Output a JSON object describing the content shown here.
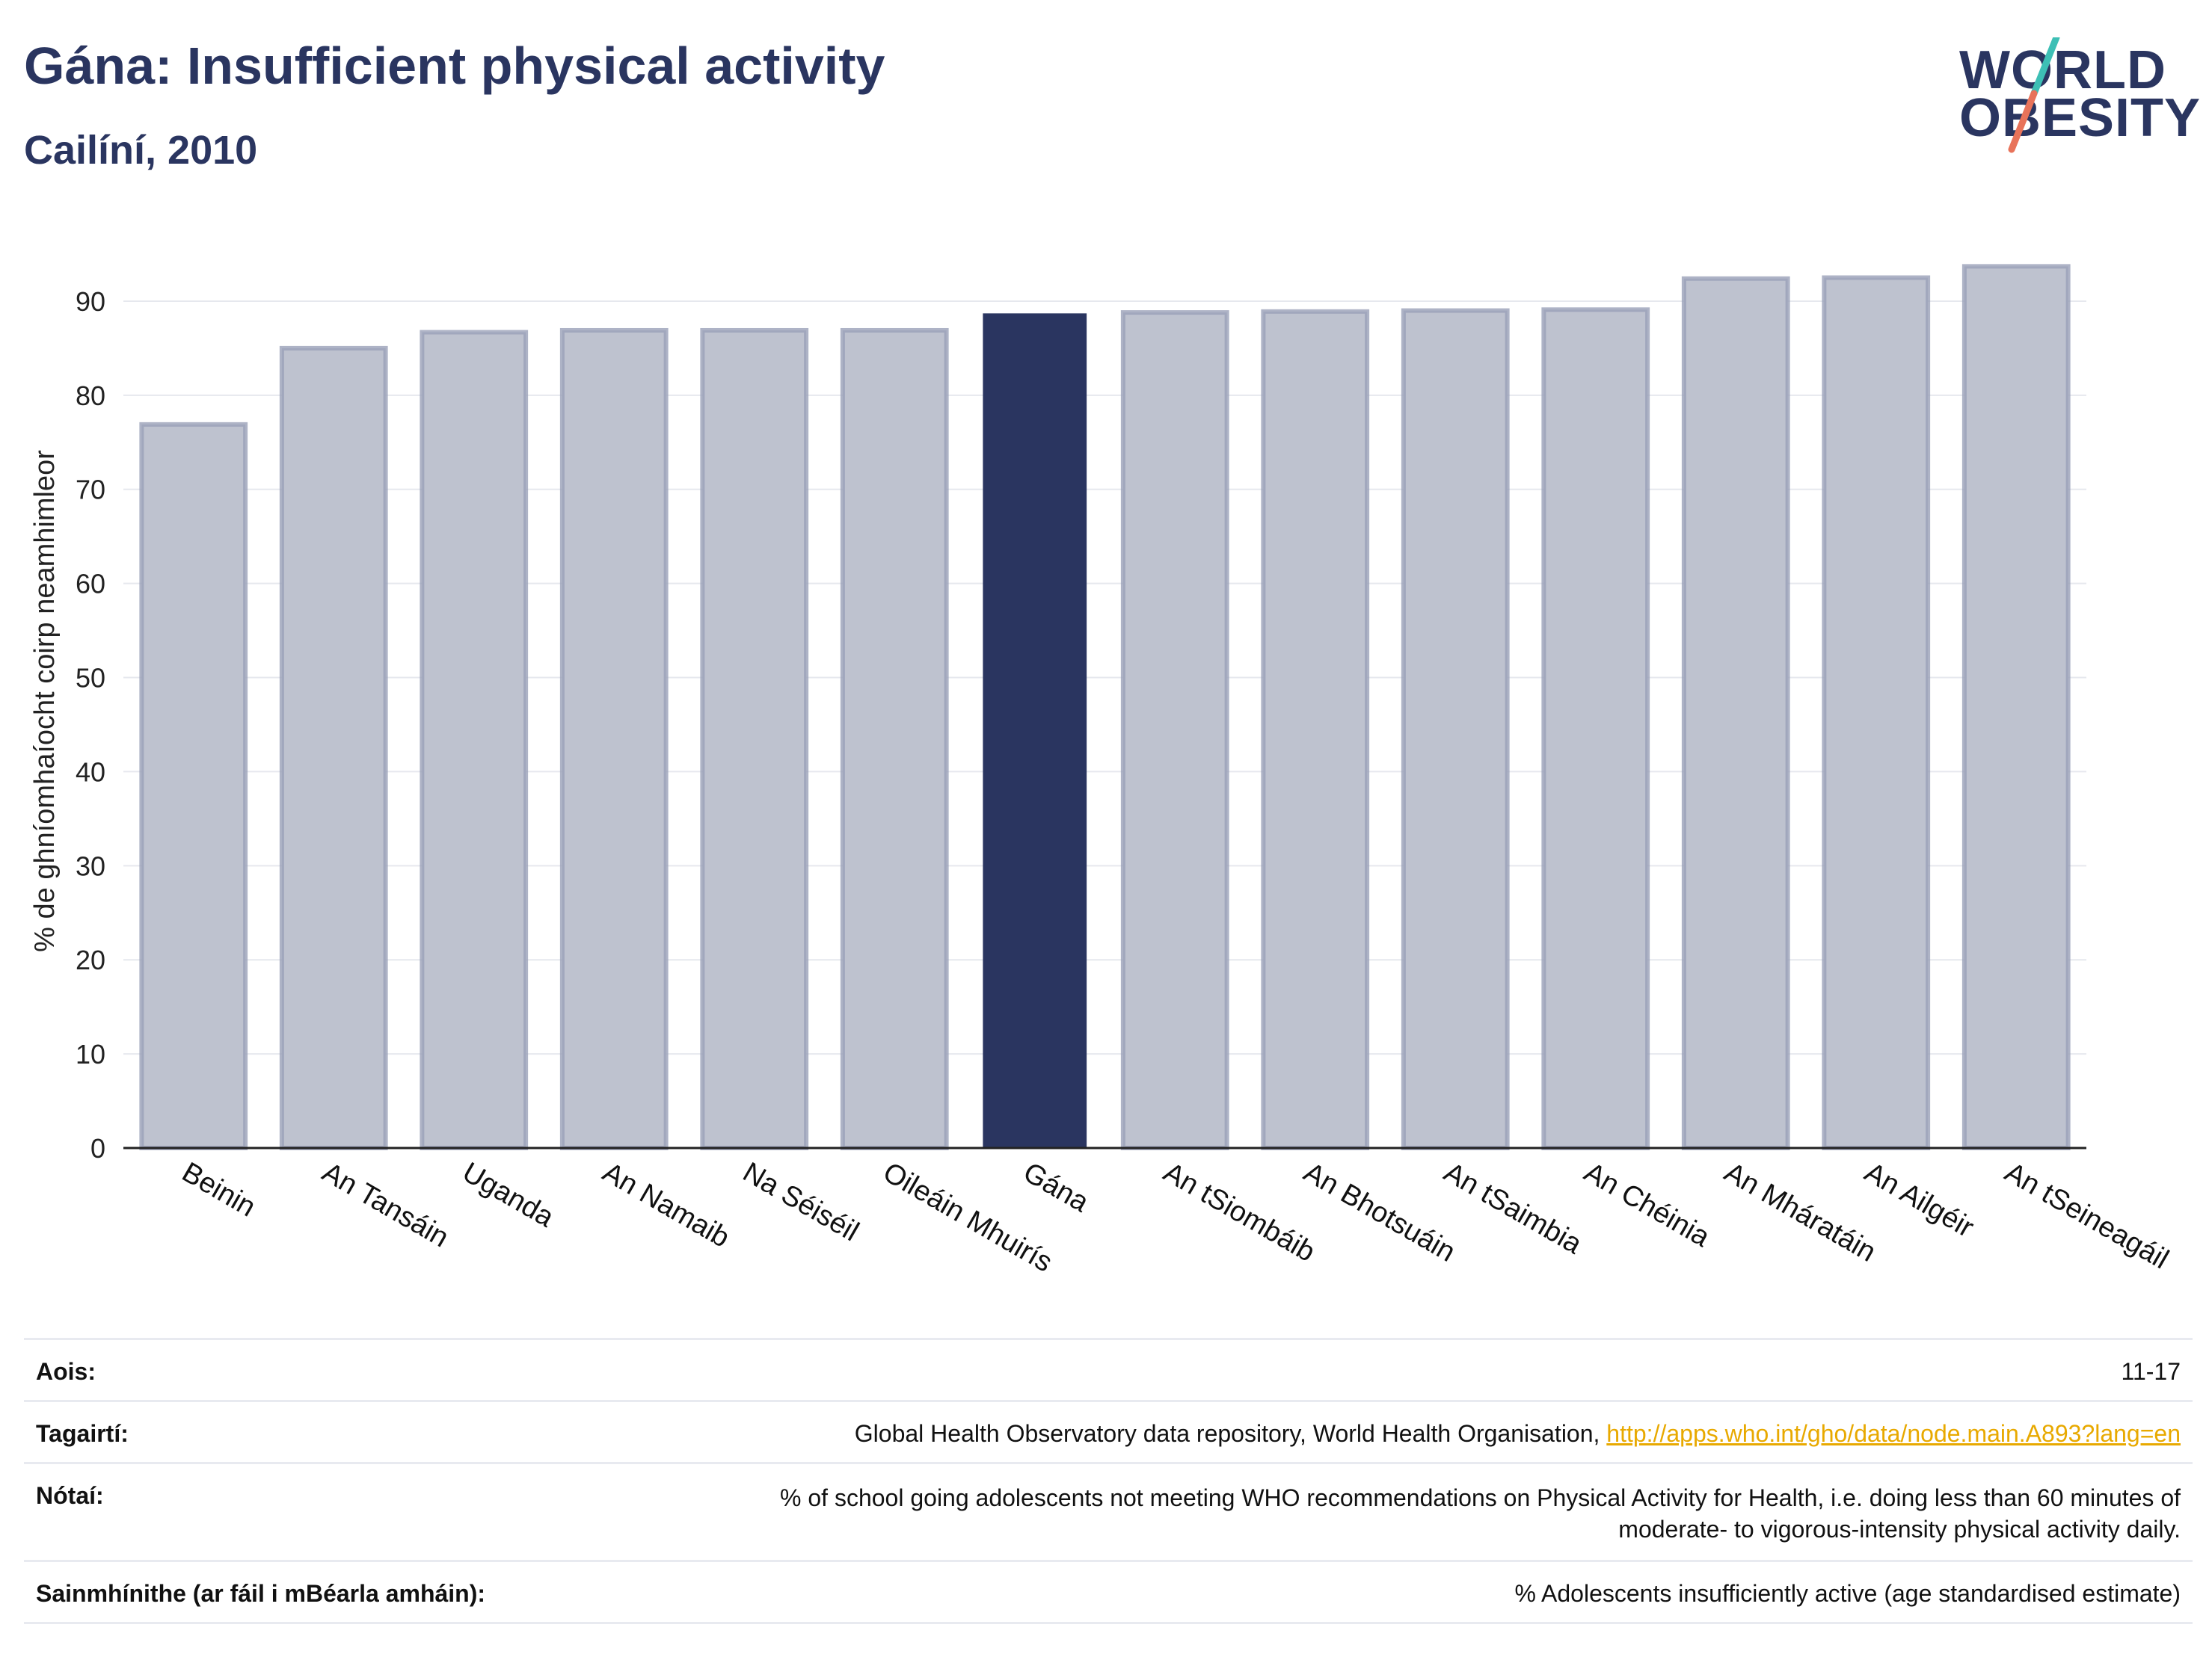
{
  "header": {
    "title": "Gána: Insufficient physical activity",
    "subtitle": "Cailíní, 2010"
  },
  "logo": {
    "line1": "WORLD",
    "line2": "OBESITY"
  },
  "colors": {
    "highlight": "#2a3560",
    "bar": "#bec2cf",
    "bar_edge": "#9aa0b8",
    "grid": "#e6e8ee",
    "axis": "#222222",
    "accent_teal": "#3dbfb5",
    "accent_red": "#e8735a"
  },
  "chart_data": {
    "type": "bar",
    "title": "Gána: Insufficient physical activity",
    "subtitle": "Cailíní, 2010",
    "xlabel": "",
    "ylabel": "% de ghníomhaíocht coirp neamhimleor",
    "ylim": [
      0,
      95
    ],
    "yticks": [
      0,
      10,
      20,
      30,
      40,
      50,
      60,
      70,
      80,
      90
    ],
    "categories": [
      "Beinin",
      "An Tansáin",
      "Uganda",
      "An Namaib",
      "Na Séiséil",
      "Oileáin Mhuirís",
      "Gána",
      "An tSiombáib",
      "An Bhotsuáin",
      "An tSaimbia",
      "An Chéinia",
      "An Mháratáin",
      "An Ailgéir",
      "An tSeineagáil"
    ],
    "values": [
      76.9,
      85.0,
      86.7,
      86.9,
      86.9,
      86.9,
      88.7,
      88.8,
      88.9,
      89.0,
      89.1,
      92.4,
      92.5,
      93.7
    ],
    "highlight": "Gána",
    "grid": true
  },
  "info": {
    "age_label": "Aois:",
    "age_value": "11-17",
    "refs_label": "Tagairtí:",
    "refs_text": "Global Health Observatory data repository, World Health Organisation, ",
    "refs_link": "http://apps.who.int/gho/data/node.main.A893?lang=en",
    "notes_label": "Nótaí:",
    "notes_line1": "% of school going adolescents not meeting WHO recommendations on Physical Activity for Health, i.e. doing less than 60 minutes of",
    "notes_line2": "moderate- to vigorous-intensity physical activity daily.",
    "def_label": "Sainmhínithe (ar fáil i mBéarla amháin):",
    "def_value": "% Adolescents insufficiently active (age standardised estimate)"
  }
}
